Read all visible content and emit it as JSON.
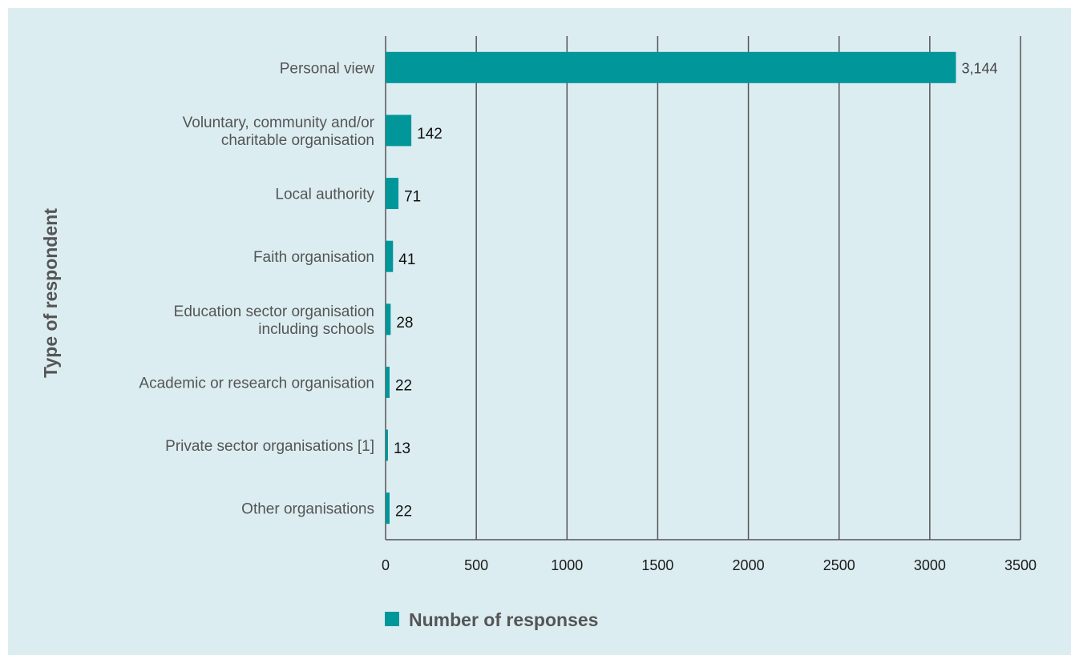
{
  "chart_data": {
    "type": "bar",
    "orientation": "horizontal",
    "categories": [
      [
        "Personal view"
      ],
      [
        "Voluntary, community and/or",
        "charitable organisation"
      ],
      [
        "Local authority"
      ],
      [
        "Faith organisation"
      ],
      [
        "Education sector organisation",
        "including schools"
      ],
      [
        "Academic or research organisation"
      ],
      [
        "Private sector organisations [1]"
      ],
      [
        "Other organisations"
      ]
    ],
    "series": [
      {
        "name": "Number of responses",
        "values": [
          3144,
          142,
          71,
          41,
          28,
          22,
          13,
          22
        ],
        "value_labels": [
          "3,144",
          "142",
          "71",
          "41",
          "28",
          "22",
          "13",
          "22"
        ]
      }
    ],
    "xlim": [
      0,
      3500
    ],
    "xticks": [
      "0",
      "500",
      "1000",
      "1500",
      "2000",
      "2500",
      "3000",
      "3500"
    ],
    "xlabel": "",
    "ylabel": "Type of respondent",
    "grid": "vertical",
    "legend": "bottom",
    "colors": {
      "bar": "#00969a",
      "background": "#dcedf1",
      "grid": "#555555"
    }
  }
}
